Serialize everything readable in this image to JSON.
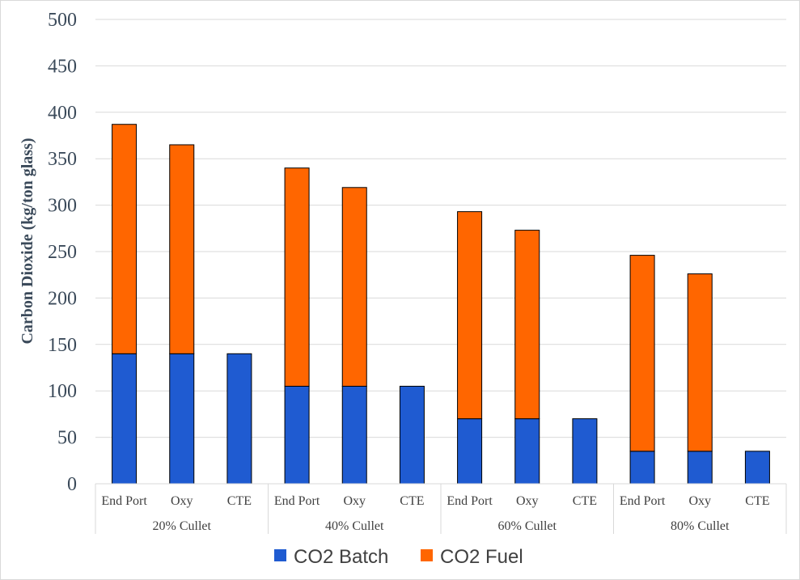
{
  "chart_data": {
    "type": "bar",
    "stacked": true,
    "ylabel": "Carbon Dioxide (kg/ton glass)",
    "ylim": [
      0,
      500
    ],
    "yticks": [
      0,
      50,
      100,
      150,
      200,
      250,
      300,
      350,
      400,
      450,
      500
    ],
    "grid": true,
    "legend_position": "bottom",
    "groups": [
      {
        "label": "20% Cullet",
        "categories": [
          "End Port",
          "Oxy",
          "CTE"
        ]
      },
      {
        "label": "40% Cullet",
        "categories": [
          "End Port",
          "Oxy",
          "CTE"
        ]
      },
      {
        "label": "60% Cullet",
        "categories": [
          "End Port",
          "Oxy",
          "CTE"
        ]
      },
      {
        "label": "80% Cullet",
        "categories": [
          "End Port",
          "Oxy",
          "CTE"
        ]
      }
    ],
    "series": [
      {
        "name": "CO2 Batch",
        "color": "#1f5bd1",
        "values": [
          140,
          140,
          140,
          105,
          105,
          105,
          70,
          70,
          70,
          35,
          35,
          35
        ]
      },
      {
        "name": "CO2 Fuel",
        "color": "#ff6600",
        "values": [
          247,
          225,
          0,
          235,
          214,
          0,
          223,
          203,
          0,
          211,
          191,
          0
        ]
      }
    ]
  }
}
